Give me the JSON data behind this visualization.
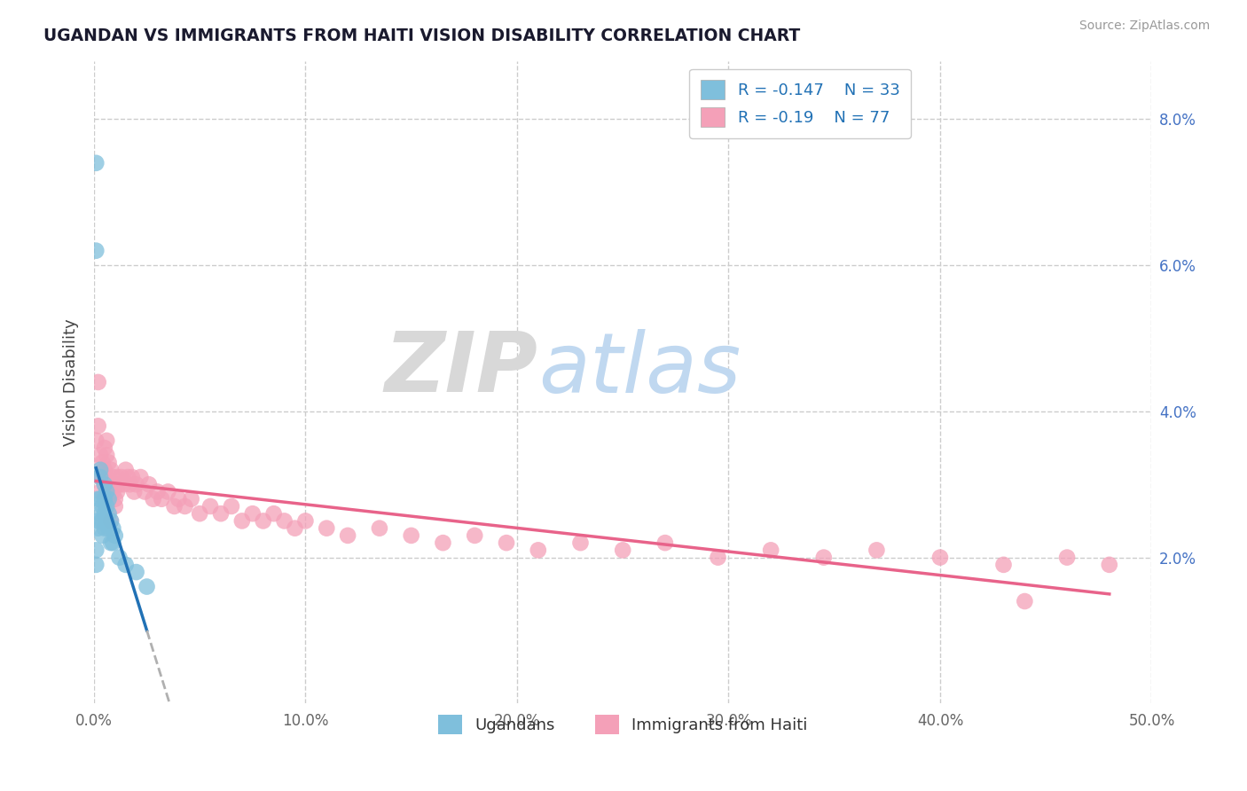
{
  "title": "UGANDAN VS IMMIGRANTS FROM HAITI VISION DISABILITY CORRELATION CHART",
  "source": "Source: ZipAtlas.com",
  "ylabel": "Vision Disability",
  "watermark_zip": "ZIP",
  "watermark_atlas": "atlas",
  "legend_label_1": "Ugandans",
  "legend_label_2": "Immigrants from Haiti",
  "r1": -0.147,
  "n1": 33,
  "r2": -0.19,
  "n2": 77,
  "xlim": [
    0.0,
    0.5
  ],
  "ylim": [
    0.0,
    0.088
  ],
  "xtick_labels": [
    "0.0%",
    "10.0%",
    "20.0%",
    "30.0%",
    "40.0%",
    "50.0%"
  ],
  "xtick_vals": [
    0.0,
    0.1,
    0.2,
    0.3,
    0.4,
    0.5
  ],
  "ytick_labels": [
    "2.0%",
    "4.0%",
    "6.0%",
    "8.0%"
  ],
  "ytick_vals": [
    0.02,
    0.04,
    0.06,
    0.08
  ],
  "color_blue": "#7fbfdc",
  "color_pink": "#f4a0b8",
  "color_blue_line": "#2171b5",
  "color_pink_line": "#e8638a",
  "color_dashed": "#b0b0b0",
  "ugandan_x": [
    0.001,
    0.001,
    0.002,
    0.002,
    0.002,
    0.003,
    0.003,
    0.003,
    0.003,
    0.004,
    0.004,
    0.004,
    0.005,
    0.005,
    0.005,
    0.005,
    0.006,
    0.006,
    0.006,
    0.007,
    0.007,
    0.007,
    0.008,
    0.008,
    0.009,
    0.009,
    0.01,
    0.012,
    0.015,
    0.02,
    0.025,
    0.001,
    0.001
  ],
  "ugandan_y": [
    0.074,
    0.062,
    0.028,
    0.025,
    0.024,
    0.032,
    0.031,
    0.028,
    0.026,
    0.027,
    0.025,
    0.023,
    0.03,
    0.028,
    0.026,
    0.024,
    0.029,
    0.027,
    0.025,
    0.028,
    0.026,
    0.024,
    0.025,
    0.022,
    0.024,
    0.022,
    0.023,
    0.02,
    0.019,
    0.018,
    0.016,
    0.021,
    0.019
  ],
  "haiti_x": [
    0.001,
    0.002,
    0.002,
    0.003,
    0.003,
    0.003,
    0.004,
    0.004,
    0.005,
    0.005,
    0.006,
    0.006,
    0.006,
    0.007,
    0.007,
    0.008,
    0.008,
    0.009,
    0.009,
    0.01,
    0.01,
    0.011,
    0.011,
    0.012,
    0.013,
    0.014,
    0.015,
    0.016,
    0.017,
    0.018,
    0.019,
    0.02,
    0.022,
    0.024,
    0.026,
    0.028,
    0.03,
    0.032,
    0.035,
    0.038,
    0.04,
    0.043,
    0.046,
    0.05,
    0.055,
    0.06,
    0.065,
    0.07,
    0.075,
    0.08,
    0.085,
    0.09,
    0.095,
    0.1,
    0.11,
    0.12,
    0.135,
    0.15,
    0.165,
    0.18,
    0.195,
    0.21,
    0.23,
    0.25,
    0.27,
    0.295,
    0.32,
    0.345,
    0.37,
    0.4,
    0.43,
    0.46,
    0.48,
    0.005,
    0.008,
    0.01,
    0.44
  ],
  "haiti_y": [
    0.036,
    0.044,
    0.038,
    0.034,
    0.031,
    0.029,
    0.033,
    0.031,
    0.035,
    0.032,
    0.036,
    0.034,
    0.031,
    0.033,
    0.03,
    0.032,
    0.03,
    0.031,
    0.029,
    0.03,
    0.028,
    0.031,
    0.029,
    0.03,
    0.031,
    0.03,
    0.032,
    0.031,
    0.03,
    0.031,
    0.029,
    0.03,
    0.031,
    0.029,
    0.03,
    0.028,
    0.029,
    0.028,
    0.029,
    0.027,
    0.028,
    0.027,
    0.028,
    0.026,
    0.027,
    0.026,
    0.027,
    0.025,
    0.026,
    0.025,
    0.026,
    0.025,
    0.024,
    0.025,
    0.024,
    0.023,
    0.024,
    0.023,
    0.022,
    0.023,
    0.022,
    0.021,
    0.022,
    0.021,
    0.022,
    0.02,
    0.021,
    0.02,
    0.021,
    0.02,
    0.019,
    0.02,
    0.019,
    0.03,
    0.025,
    0.027,
    0.014
  ]
}
